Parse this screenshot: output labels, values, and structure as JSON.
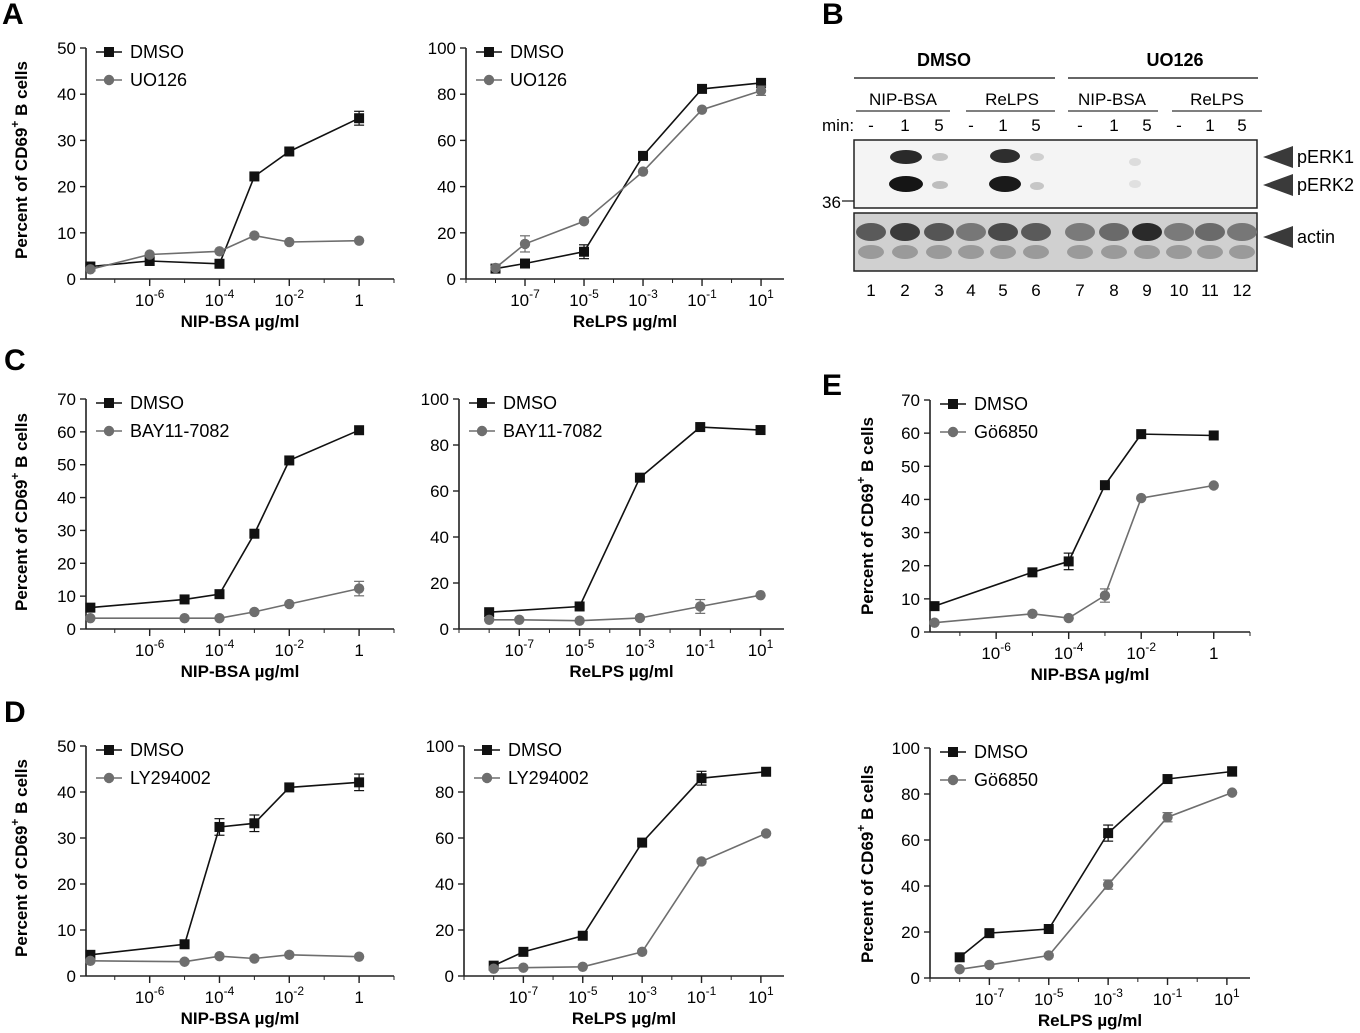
{
  "panels": {
    "A": "A",
    "B": "B",
    "C": "C",
    "D": "D",
    "E": "E"
  },
  "blot": {
    "group_labels": [
      "DMSO",
      "UO126"
    ],
    "sub_labels": [
      "NIP-BSA",
      "ReLPS",
      "NIP-BSA",
      "ReLPS"
    ],
    "min_label": "min:",
    "time_labels": [
      "-",
      "1",
      "5",
      "-",
      "1",
      "5",
      "-",
      "1",
      "5",
      "-",
      "1",
      "5"
    ],
    "bands": [
      "pERK1",
      "pERK2",
      "actin"
    ],
    "mw_marker": "36",
    "lane_numbers": [
      "1",
      "2",
      "3",
      "4",
      "5",
      "6",
      "7",
      "8",
      "9",
      "10",
      "11",
      "12"
    ]
  },
  "colors": {
    "dmso": "#111111",
    "inhibitor": "#6e6e6e"
  },
  "chart_data": [
    {
      "id": "A-left",
      "panel": "A",
      "type": "line",
      "xlabel": "NIP-BSA µg/ml",
      "ylabel": "Percent of CD69+ B cells",
      "x_scale": "log10",
      "xlim": [
        1.5e-08,
        10
      ],
      "ylim": [
        0,
        50
      ],
      "yticks": [
        0,
        10,
        20,
        30,
        40,
        50
      ],
      "xticks": [
        {
          "v": 1e-06,
          "b": "10",
          "e": "-6"
        },
        {
          "v": 0.0001,
          "b": "10",
          "e": "-4"
        },
        {
          "v": 0.01,
          "b": "10",
          "e": "-2"
        },
        {
          "v": 1,
          "b": "1",
          "e": ""
        }
      ],
      "legend": [
        "DMSO",
        "UO126"
      ],
      "legend_position": "top-left",
      "series": [
        {
          "name": "DMSO",
          "x": [
            2e-08,
            1e-06,
            0.0001,
            0.001,
            0.01,
            1
          ],
          "y": [
            2.7,
            3.9,
            3.3,
            22.2,
            27.6,
            34.8
          ],
          "err": [
            0,
            0,
            0,
            0,
            0,
            1.5
          ]
        },
        {
          "name": "UO126",
          "x": [
            2e-08,
            1e-06,
            0.0001,
            0.001,
            0.01,
            1
          ],
          "y": [
            2.1,
            5.3,
            6.0,
            9.4,
            8.0,
            8.3
          ],
          "err": [
            0,
            0,
            0,
            0,
            0,
            0
          ]
        }
      ]
    },
    {
      "id": "A-right",
      "panel": "A",
      "type": "line",
      "xlabel": "ReLPS µg/ml",
      "ylabel": "",
      "x_scale": "log10",
      "xlim": [
        1e-09,
        60
      ],
      "ylim": [
        0,
        100
      ],
      "yticks": [
        0,
        20,
        40,
        60,
        80,
        100
      ],
      "xticks": [
        {
          "v": 1e-07,
          "b": "10",
          "e": "-7"
        },
        {
          "v": 1e-05,
          "b": "10",
          "e": "-5"
        },
        {
          "v": 0.001,
          "b": "10",
          "e": "-3"
        },
        {
          "v": 0.1,
          "b": "10",
          "e": "-1"
        },
        {
          "v": 10,
          "b": "10",
          "e": "1"
        }
      ],
      "legend": [
        "DMSO",
        "UO126"
      ],
      "legend_position": "top-left",
      "series": [
        {
          "name": "DMSO",
          "x": [
            1e-08,
            1e-07,
            1e-05,
            0.001,
            0.1,
            10
          ],
          "y": [
            4.5,
            6.7,
            11.8,
            53.3,
            82.3,
            84.9
          ],
          "err": [
            0,
            0,
            3,
            0,
            0,
            1
          ]
        },
        {
          "name": "UO126",
          "x": [
            1e-08,
            1e-07,
            1e-05,
            0.001,
            0.1,
            10
          ],
          "y": [
            4.8,
            15.2,
            25.0,
            46.5,
            73.3,
            81.5
          ],
          "err": [
            0,
            3.5,
            0,
            0,
            0,
            2
          ]
        }
      ]
    },
    {
      "id": "C-left",
      "panel": "C",
      "type": "line",
      "xlabel": "NIP-BSA µg/ml",
      "ylabel": "Percent of CD69+ B cells",
      "x_scale": "log10",
      "xlim": [
        1.5e-08,
        10
      ],
      "ylim": [
        0,
        70
      ],
      "yticks": [
        0,
        10,
        20,
        30,
        40,
        50,
        60,
        70
      ],
      "xticks": [
        {
          "v": 1e-06,
          "b": "10",
          "e": "-6"
        },
        {
          "v": 0.0001,
          "b": "10",
          "e": "-4"
        },
        {
          "v": 0.01,
          "b": "10",
          "e": "-2"
        },
        {
          "v": 1,
          "b": "1",
          "e": ""
        }
      ],
      "legend": [
        "DMSO",
        "BAY11-7082"
      ],
      "legend_position": "top-left",
      "series": [
        {
          "name": "DMSO",
          "x": [
            2e-08,
            1e-05,
            0.0001,
            0.001,
            0.01,
            1
          ],
          "y": [
            6.5,
            9.0,
            10.6,
            29.0,
            51.3,
            60.5
          ],
          "err": [
            0,
            0,
            0,
            0,
            0,
            0
          ]
        },
        {
          "name": "BAY11-7082",
          "x": [
            2e-08,
            1e-05,
            0.0001,
            0.001,
            0.01,
            1
          ],
          "y": [
            3.3,
            3.3,
            3.3,
            5.2,
            7.6,
            12.3
          ],
          "err": [
            0,
            0,
            0,
            0,
            0,
            2.2
          ]
        }
      ]
    },
    {
      "id": "C-right",
      "panel": "C",
      "type": "line",
      "xlabel": "ReLPS µg/ml",
      "ylabel": "",
      "x_scale": "log10",
      "xlim": [
        1e-09,
        60
      ],
      "ylim": [
        0,
        100
      ],
      "yticks": [
        0,
        20,
        40,
        60,
        80,
        100
      ],
      "xticks": [
        {
          "v": 1e-07,
          "b": "10",
          "e": "-7"
        },
        {
          "v": 1e-05,
          "b": "10",
          "e": "-5"
        },
        {
          "v": 0.001,
          "b": "10",
          "e": "-3"
        },
        {
          "v": 0.1,
          "b": "10",
          "e": "-1"
        },
        {
          "v": 10,
          "b": "10",
          "e": "1"
        }
      ],
      "legend": [
        "DMSO",
        "BAY11-7082"
      ],
      "legend_position": "top-left",
      "series": [
        {
          "name": "DMSO",
          "x": [
            1e-08,
            1e-05,
            0.001,
            0.1,
            10
          ],
          "y": [
            7.3,
            9.8,
            65.8,
            87.8,
            86.5
          ],
          "err": [
            0,
            0,
            0,
            0,
            0
          ]
        },
        {
          "name": "BAY11-7082",
          "x": [
            1e-08,
            1e-07,
            1e-05,
            0.001,
            0.1,
            10
          ],
          "y": [
            4.0,
            4.0,
            3.6,
            4.8,
            9.8,
            14.7
          ],
          "err": [
            0,
            0,
            0,
            0,
            3,
            0
          ]
        }
      ]
    },
    {
      "id": "D-left",
      "panel": "D",
      "type": "line",
      "xlabel": "NIP-BSA µg/ml",
      "ylabel": "Percent of CD69+ B cells",
      "x_scale": "log10",
      "xlim": [
        1.5e-08,
        10
      ],
      "ylim": [
        0,
        50
      ],
      "yticks": [
        0,
        10,
        20,
        30,
        40,
        50
      ],
      "xticks": [
        {
          "v": 1e-06,
          "b": "10",
          "e": "-6"
        },
        {
          "v": 0.0001,
          "b": "10",
          "e": "-4"
        },
        {
          "v": 0.01,
          "b": "10",
          "e": "-2"
        },
        {
          "v": 1,
          "b": "1",
          "e": ""
        }
      ],
      "legend": [
        "DMSO",
        "LY294002"
      ],
      "legend_position": "top-left",
      "series": [
        {
          "name": "DMSO",
          "x": [
            2e-08,
            1e-05,
            0.0001,
            0.001,
            0.01,
            1
          ],
          "y": [
            4.6,
            6.9,
            32.4,
            33.2,
            41.0,
            42.1
          ],
          "err": [
            0,
            0,
            1.8,
            1.8,
            0,
            1.8
          ]
        },
        {
          "name": "LY294002",
          "x": [
            2e-08,
            1e-05,
            0.0001,
            0.001,
            0.01,
            1
          ],
          "y": [
            3.3,
            3.1,
            4.3,
            3.8,
            4.6,
            4.2
          ],
          "err": [
            0,
            0,
            0,
            0,
            0,
            0
          ]
        }
      ]
    },
    {
      "id": "D-mid",
      "panel": "D",
      "type": "line",
      "xlabel": "ReLPS µg/ml",
      "ylabel": "",
      "x_scale": "log10",
      "xlim": [
        1e-09,
        60
      ],
      "ylim": [
        0,
        100
      ],
      "yticks": [
        0,
        20,
        40,
        60,
        80,
        100
      ],
      "xticks": [
        {
          "v": 1e-07,
          "b": "10",
          "e": "-7"
        },
        {
          "v": 1e-05,
          "b": "10",
          "e": "-5"
        },
        {
          "v": 0.001,
          "b": "10",
          "e": "-3"
        },
        {
          "v": 0.1,
          "b": "10",
          "e": "-1"
        },
        {
          "v": 10,
          "b": "10",
          "e": "1"
        }
      ],
      "legend": [
        "DMSO",
        "LY294002"
      ],
      "legend_position": "top-left",
      "series": [
        {
          "name": "DMSO",
          "x": [
            1e-08,
            1e-07,
            1e-05,
            0.001,
            0.1,
            15
          ],
          "y": [
            4.5,
            10.5,
            17.5,
            58.0,
            86.0,
            88.8
          ],
          "err": [
            0,
            0,
            0,
            0,
            3,
            0
          ]
        },
        {
          "name": "LY294002",
          "x": [
            1e-08,
            1e-07,
            1e-05,
            0.001,
            0.1,
            15
          ],
          "y": [
            3.2,
            3.6,
            4.0,
            10.5,
            49.8,
            62.0
          ],
          "err": [
            0,
            0,
            0,
            0,
            0,
            0
          ]
        }
      ]
    },
    {
      "id": "E-top",
      "panel": "E",
      "type": "line",
      "xlabel": "NIP-BSA µg/ml",
      "ylabel": "Percent of CD69+ B cells",
      "x_scale": "log10",
      "xlim": [
        1.5e-08,
        10
      ],
      "ylim": [
        0,
        70
      ],
      "yticks": [
        0,
        10,
        20,
        30,
        40,
        50,
        60,
        70
      ],
      "xticks": [
        {
          "v": 1e-06,
          "b": "10",
          "e": "-6"
        },
        {
          "v": 0.0001,
          "b": "10",
          "e": "-4"
        },
        {
          "v": 0.01,
          "b": "10",
          "e": "-2"
        },
        {
          "v": 1,
          "b": "1",
          "e": ""
        }
      ],
      "legend": [
        "DMSO",
        "Gö6850"
      ],
      "legend_position": "top-left",
      "series": [
        {
          "name": "DMSO",
          "x": [
            2e-08,
            1e-05,
            0.0001,
            0.001,
            0.01,
            1
          ],
          "y": [
            7.8,
            18.0,
            21.3,
            44.3,
            59.7,
            59.3
          ],
          "err": [
            0,
            0,
            2.5,
            0,
            0,
            0
          ]
        },
        {
          "name": "Gö6850",
          "x": [
            2e-08,
            1e-05,
            0.0001,
            0.001,
            0.01,
            1
          ],
          "y": [
            2.8,
            5.5,
            4.2,
            11.0,
            40.4,
            44.2
          ],
          "err": [
            0,
            0,
            0,
            2,
            0,
            0
          ]
        }
      ]
    },
    {
      "id": "E-bottom",
      "panel": "E",
      "type": "line",
      "xlabel": "ReLPS µg/ml",
      "ylabel": "Percent of CD69+ B cells",
      "x_scale": "log10",
      "xlim": [
        1e-09,
        60
      ],
      "ylim": [
        0,
        100
      ],
      "yticks": [
        0,
        20,
        40,
        60,
        80,
        100
      ],
      "xticks": [
        {
          "v": 1e-07,
          "b": "10",
          "e": "-7"
        },
        {
          "v": 1e-05,
          "b": "10",
          "e": "-5"
        },
        {
          "v": 0.001,
          "b": "10",
          "e": "-3"
        },
        {
          "v": 0.1,
          "b": "10",
          "e": "-1"
        },
        {
          "v": 10,
          "b": "10",
          "e": "1"
        }
      ],
      "legend": [
        "DMSO",
        "Gö6850"
      ],
      "legend_position": "top-left",
      "series": [
        {
          "name": "DMSO",
          "x": [
            1e-08,
            1e-07,
            1e-05,
            0.001,
            0.1,
            15
          ],
          "y": [
            9.0,
            19.5,
            21.3,
            63.0,
            86.5,
            89.8
          ],
          "err": [
            0,
            0,
            0,
            3.5,
            0,
            2
          ]
        },
        {
          "name": "Gö6850",
          "x": [
            1e-08,
            1e-07,
            1e-05,
            0.001,
            0.1,
            15
          ],
          "y": [
            3.8,
            5.7,
            9.8,
            40.6,
            69.9,
            80.6
          ],
          "err": [
            0,
            0,
            0,
            2,
            2,
            0
          ]
        }
      ]
    }
  ]
}
